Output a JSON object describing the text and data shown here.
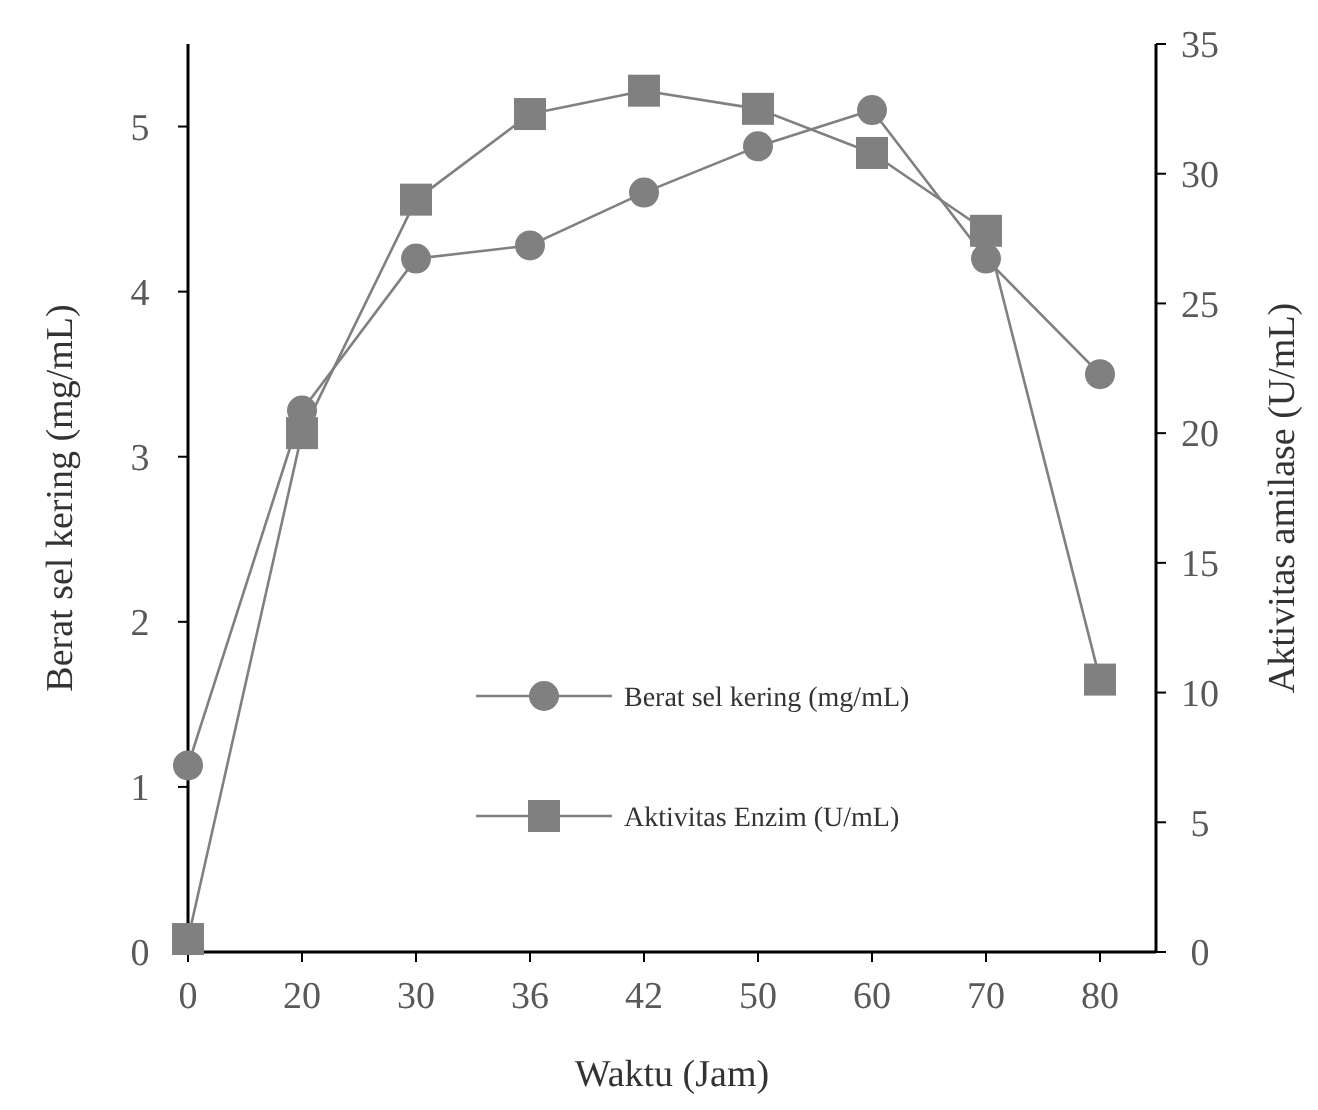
{
  "chart_data": {
    "type": "line",
    "xlabel": "Waktu (Jam)",
    "ylabel": "Berat sel kering  (mg/mL)",
    "y2label": "Aktivitas amilase (U/mL)",
    "categories": [
      "0",
      "20",
      "30",
      "36",
      "42",
      "50",
      "60",
      "70",
      "80"
    ],
    "series": [
      {
        "name": "Berat sel kering (mg/mL)",
        "color": "#808080",
        "marker": "circle",
        "values": [
          1.13,
          3.28,
          4.2,
          4.28,
          4.6,
          4.88,
          5.1,
          4.2,
          3.5
        ]
      },
      {
        "name": "Aktivitas Enzim  (U/mL)",
        "color": "#808080",
        "marker": "square",
        "axis": "y2",
        "values": [
          0.5,
          20,
          29,
          32.3,
          33.2,
          32.5,
          30.8,
          27.8,
          10.5
        ]
      }
    ],
    "ylim": [
      0,
      5.5
    ],
    "yticks": [
      0,
      1,
      2,
      3,
      4,
      5
    ],
    "y2lim": [
      0,
      35
    ],
    "y2ticks": [
      0,
      5,
      10,
      15,
      20,
      25,
      30,
      35
    ],
    "legend": "bottom right",
    "grid": false
  }
}
